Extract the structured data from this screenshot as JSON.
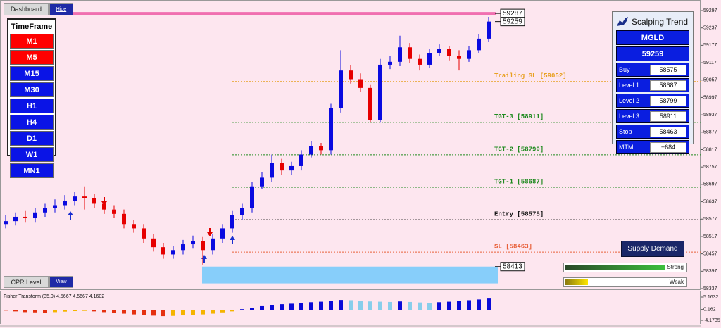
{
  "toolbar": {
    "dashboard": "Dashboard",
    "hide": "Hide"
  },
  "timeframe": {
    "title": "TimeFrame",
    "buttons": [
      {
        "label": "M1",
        "color": "#ff0000"
      },
      {
        "label": "M5",
        "color": "#ff0000"
      },
      {
        "label": "M15",
        "color": "#0a14e6"
      },
      {
        "label": "M30",
        "color": "#0a14e6"
      },
      {
        "label": "H1",
        "color": "#0a14e6"
      },
      {
        "label": "H4",
        "color": "#0a14e6"
      },
      {
        "label": "D1",
        "color": "#0a14e6"
      },
      {
        "label": "W1",
        "color": "#0a14e6"
      },
      {
        "label": "MN1",
        "color": "#0a14e6"
      }
    ]
  },
  "cpr": {
    "label": "CPR Level",
    "view": "View"
  },
  "panel": {
    "title": "Scalping Trend",
    "symbol": "MGLD",
    "price": 59259,
    "rows": [
      {
        "label": "Buy",
        "value": 58575
      },
      {
        "label": "Level 1",
        "value": 58687
      },
      {
        "label": "Level 2",
        "value": 58799
      },
      {
        "label": "Level 3",
        "value": 58911
      },
      {
        "label": "Stop",
        "value": 58463
      },
      {
        "label": "MTM",
        "value": "+684"
      }
    ]
  },
  "supply_demand": "Supply Demand",
  "strength": {
    "strong": "Strong",
    "weak": "Weak"
  },
  "chart_data": [
    {
      "type": "candlestick",
      "open": [
        58560,
        58570,
        58585,
        58580,
        58600,
        58615,
        58625,
        58640,
        58655,
        58650,
        58630,
        58610,
        58595,
        58560,
        58545,
        58510,
        58480,
        58455,
        58470,
        58490,
        58500,
        58470,
        58510,
        58545,
        58590,
        58615,
        58690,
        58720,
        58770,
        58745,
        58760,
        58800,
        58830,
        58815,
        58960,
        59090,
        59060,
        59030,
        58920,
        59110,
        59120,
        59170,
        59130,
        59110,
        59150,
        59165,
        59140,
        59130,
        59160,
        59200
      ],
      "high": [
        58590,
        58600,
        58605,
        58615,
        58630,
        58645,
        58660,
        58670,
        58690,
        58665,
        58645,
        58625,
        58610,
        58575,
        58560,
        58525,
        58495,
        58485,
        58505,
        58520,
        58515,
        58525,
        58560,
        58605,
        58630,
        58705,
        58740,
        58800,
        58785,
        58775,
        58815,
        58845,
        58840,
        58975,
        59160,
        59110,
        59080,
        59040,
        59130,
        59140,
        59210,
        59185,
        59145,
        59165,
        59180,
        59175,
        59160,
        59175,
        59215,
        59275
      ],
      "low": [
        58545,
        58555,
        58565,
        58565,
        58585,
        58600,
        58610,
        58625,
        58610,
        58615,
        58595,
        58580,
        58545,
        58530,
        58495,
        58465,
        58440,
        58440,
        58455,
        58475,
        58420,
        58455,
        58495,
        58530,
        58575,
        58600,
        58680,
        58705,
        58730,
        58730,
        58745,
        58790,
        58800,
        58800,
        58945,
        59045,
        59015,
        58910,
        58910,
        59095,
        59105,
        59115,
        59090,
        59100,
        59140,
        59125,
        59090,
        59120,
        59150,
        59190
      ],
      "close": [
        58570,
        58585,
        58580,
        58600,
        58615,
        58625,
        58640,
        58655,
        58650,
        58630,
        58610,
        58595,
        58560,
        58545,
        58510,
        58480,
        58455,
        58470,
        58490,
        58500,
        58470,
        58510,
        58545,
        58590,
        58615,
        58690,
        58720,
        58770,
        58745,
        58760,
        58800,
        58830,
        58815,
        58960,
        59090,
        59060,
        59030,
        58920,
        59110,
        59120,
        59170,
        59130,
        59110,
        59150,
        59165,
        59140,
        59130,
        59160,
        59200,
        59259
      ],
      "up_color": "#0a0ae0",
      "down_color": "#e60000",
      "ylim": [
        58337,
        59297
      ],
      "yticks": [
        59297,
        59237,
        59177,
        59117,
        59057,
        58997,
        58937,
        58877,
        58817,
        58757,
        58697,
        58637,
        58577,
        58517,
        58457,
        58397,
        58337
      ],
      "top_line": {
        "value": 59287,
        "color": "#f06fb0"
      },
      "last_price": 59259,
      "demand_zone": {
        "high": 58413,
        "low": 58355,
        "color": "#87cefa"
      },
      "levels": [
        {
          "label": "Trailing SL [59052]",
          "value": 59052,
          "color": "#e8a020"
        },
        {
          "label": "TGT-3 [58911]",
          "value": 58911,
          "color": "#1f8a1f"
        },
        {
          "label": "TGT-2 [58799]",
          "value": 58799,
          "color": "#1f8a1f"
        },
        {
          "label": "TGT-1 [58687]",
          "value": 58687,
          "color": "#1f8a1f"
        },
        {
          "label": "Entry [58575]",
          "value": 58575,
          "color": "#111111"
        },
        {
          "label": "SL [58463]",
          "value": 58463,
          "color": "#e8603a"
        }
      ]
    },
    {
      "type": "bar",
      "title": "Fisher Transform (35,0) 4.5667 4.5667 4.1602",
      "values": [
        -0.3,
        -0.6,
        -0.9,
        -1.0,
        -1.1,
        -0.9,
        -0.7,
        -0.5,
        -0.4,
        -0.6,
        -0.9,
        -1.2,
        -1.5,
        -1.8,
        -2.1,
        -2.3,
        -2.5,
        -2.4,
        -2.2,
        -2.0,
        -1.8,
        -1.5,
        -1.0,
        -0.6,
        0.3,
        0.9,
        1.5,
        2.0,
        2.3,
        2.5,
        2.8,
        3.1,
        3.3,
        3.6,
        4.0,
        3.9,
        3.7,
        3.4,
        3.3,
        3.2,
        3.4,
        3.2,
        3.0,
        2.9,
        3.1,
        3.3,
        3.5,
        3.9,
        4.2,
        4.5667
      ],
      "pos_up_color": "#0a0ad8",
      "pos_down_color": "#87ceeb",
      "neg_down_color": "#e53010",
      "neg_up_color": "#f5b400",
      "ylim": [
        -4.1735,
        5.1632
      ],
      "yticks": [
        5.1632,
        0.162,
        -4.1735
      ]
    }
  ]
}
